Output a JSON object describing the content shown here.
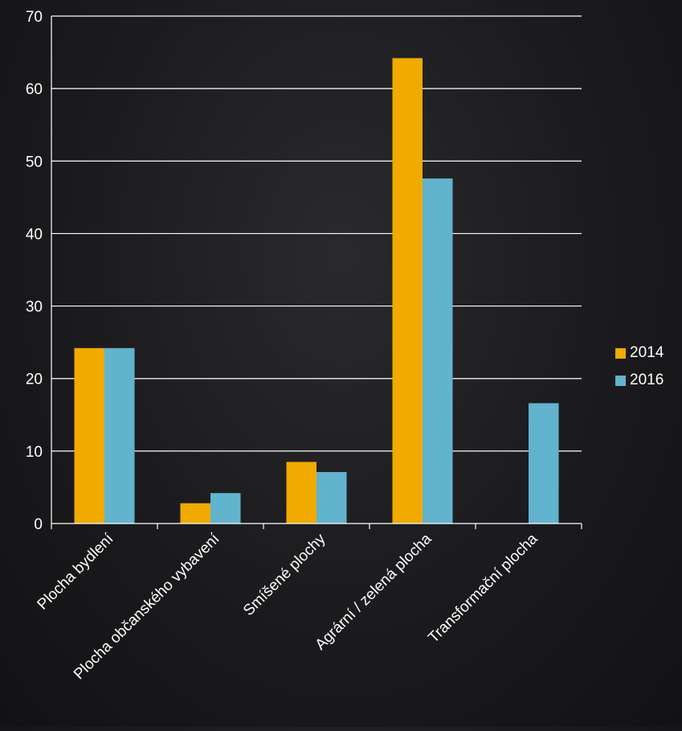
{
  "chart_data": {
    "type": "bar",
    "categories": [
      "Plocha bydlení",
      "Plocha občanského vybavení",
      "Smíšené plochy",
      "Agrární / zelená plocha",
      "Transformační plocha"
    ],
    "series": [
      {
        "name": "2014",
        "color": "#f0aa00",
        "values": [
          24.2,
          2.8,
          8.5,
          64.2,
          0
        ]
      },
      {
        "name": "2016",
        "color": "#62b3cd",
        "values": [
          24.2,
          4.2,
          7.1,
          47.6,
          16.6
        ]
      }
    ],
    "ylim": [
      0,
      70
    ],
    "y_ticks": [
      "0",
      "10",
      "20",
      "30",
      "40",
      "50",
      "60",
      "70"
    ],
    "grid": true,
    "legend_position": "right",
    "title": "",
    "xlabel": "",
    "ylabel": ""
  }
}
